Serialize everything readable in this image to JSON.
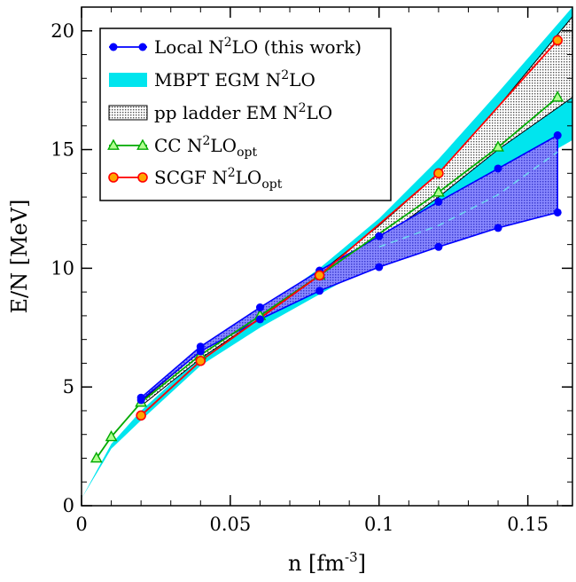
{
  "chart_data": {
    "type": "line",
    "xlabel": "n [fm",
    "xlabel_sup": "-3",
    "xlabel_end": "]",
    "ylabel": "E/N [MeV]",
    "xlim": [
      0,
      0.165
    ],
    "ylim": [
      0,
      21
    ],
    "xticks": [
      {
        "value": 0,
        "label": "0"
      },
      {
        "value": 0.05,
        "label": "0.05"
      },
      {
        "value": 0.1,
        "label": "0.1"
      },
      {
        "value": 0.15,
        "label": "0.15"
      }
    ],
    "yticks": [
      {
        "value": 0,
        "label": "0"
      },
      {
        "value": 5,
        "label": "5"
      },
      {
        "value": 10,
        "label": "10"
      },
      {
        "value": 15,
        "label": "15"
      },
      {
        "value": 20,
        "label": "20"
      }
    ],
    "x_minor_step": 0.01,
    "y_minor_step": 1,
    "grid": false,
    "legend_position": "top-left",
    "legend": [
      {
        "key": "local",
        "parts": [
          [
            "Local N",
            ""
          ],
          [
            "2",
            "sup"
          ],
          [
            "LO (this work)",
            ""
          ]
        ]
      },
      {
        "key": "mbpt",
        "parts": [
          [
            "MBPT EGM N",
            ""
          ],
          [
            "2",
            "sup"
          ],
          [
            "LO",
            ""
          ]
        ]
      },
      {
        "key": "ppladder",
        "parts": [
          [
            "pp ladder EM N",
            ""
          ],
          [
            "2",
            "sup"
          ],
          [
            "LO",
            ""
          ]
        ]
      },
      {
        "key": "cc",
        "parts": [
          [
            "CC N",
            ""
          ],
          [
            "2",
            "sup"
          ],
          [
            "LO",
            ""
          ],
          [
            "opt",
            "sub"
          ]
        ]
      },
      {
        "key": "scgf",
        "parts": [
          [
            "SCGF N",
            ""
          ],
          [
            "2",
            "sup"
          ],
          [
            "LO",
            ""
          ],
          [
            "opt",
            "sub"
          ]
        ]
      }
    ],
    "series": [
      {
        "key": "local",
        "kind": "band-with-points",
        "color": "#0000ff",
        "fill": "#6f6fd8",
        "upper": {
          "x": [
            0.02,
            0.04,
            0.06,
            0.08,
            0.1,
            0.12,
            0.14,
            0.16
          ],
          "y": [
            4.55,
            6.7,
            8.35,
            9.9,
            11.35,
            12.8,
            14.2,
            15.6
          ]
        },
        "lower": {
          "x": [
            0.02,
            0.04,
            0.06,
            0.08,
            0.1,
            0.12,
            0.14,
            0.16
          ],
          "y": [
            4.45,
            6.5,
            7.85,
            9.05,
            10.05,
            10.9,
            11.7,
            12.35
          ]
        },
        "center_dashed": {
          "x": [
            0.1,
            0.12,
            0.14,
            0.16
          ],
          "y": [
            10.9,
            11.8,
            13.1,
            14.9
          ],
          "color": "#6fd8f0"
        }
      },
      {
        "key": "mbpt",
        "kind": "band",
        "color": "#00e5ee",
        "upper": {
          "x": [
            0.0,
            0.01,
            0.02,
            0.04,
            0.06,
            0.08,
            0.1,
            0.12,
            0.14,
            0.165
          ],
          "y": [
            0.3,
            2.6,
            4.0,
            6.3,
            8.2,
            10.0,
            12.1,
            14.6,
            17.4,
            21.0
          ]
        },
        "lower": {
          "x": [
            0.0,
            0.01,
            0.02,
            0.04,
            0.06,
            0.08,
            0.1,
            0.12,
            0.14,
            0.165
          ],
          "y": [
            0.3,
            2.4,
            3.6,
            5.9,
            7.5,
            8.9,
            10.3,
            11.9,
            13.6,
            15.4
          ]
        }
      },
      {
        "key": "ppladder",
        "kind": "band",
        "color": "#000000",
        "fill": "#c8c8c8",
        "upper": {
          "x": [
            0.02,
            0.04,
            0.06,
            0.08,
            0.1,
            0.12,
            0.14,
            0.165
          ],
          "y": [
            4.4,
            6.5,
            8.2,
            9.8,
            11.8,
            14.0,
            16.8,
            20.6
          ]
        },
        "lower": {
          "x": [
            0.02,
            0.04,
            0.06,
            0.08,
            0.1,
            0.12,
            0.14,
            0.165
          ],
          "y": [
            4.2,
            6.2,
            7.9,
            9.5,
            11.2,
            13.0,
            15.0,
            17.2
          ]
        }
      },
      {
        "key": "cc",
        "kind": "line-markers",
        "color": "#00aa00",
        "marker": "triangle",
        "x": [
          0.005,
          0.01,
          0.02,
          0.04,
          0.06,
          0.08,
          0.12,
          0.14,
          0.16
        ],
        "y": [
          2.0,
          2.9,
          4.35,
          6.35,
          8.0,
          9.7,
          13.2,
          15.1,
          17.2
        ]
      },
      {
        "key": "scgf",
        "kind": "line-markers",
        "color": "#ff0000",
        "marker_fill": "#ffa500",
        "marker": "circle",
        "x": [
          0.02,
          0.04,
          0.08,
          0.12,
          0.16
        ],
        "y": [
          3.8,
          6.1,
          9.7,
          14.0,
          19.6
        ]
      }
    ]
  }
}
